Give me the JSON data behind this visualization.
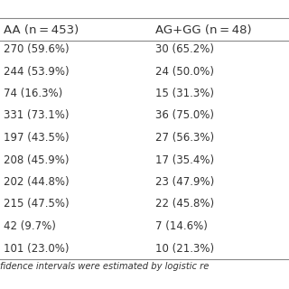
{
  "col1_header": "AA (n = 453)",
  "col2_header": "AG+GG (n = 48)",
  "col1_values": [
    "270 (59.6%)",
    "244 (53.9%)",
    "74 (16.3%)",
    "331 (73.1%)",
    "197 (43.5%)",
    "208 (45.9%)",
    "202 (44.8%)",
    "215 (47.5%)",
    "42 (9.7%)",
    "101 (23.0%)"
  ],
  "col2_values": [
    "30 (65.2%)",
    "24 (50.0%)",
    "15 (31.3%)",
    "36 (75.0%)",
    "27 (56.3%)",
    "17 (35.4%)",
    "23 (47.9%)",
    "22 (45.8%)",
    "7 (14.6%)",
    "10 (21.3%)"
  ],
  "footer": "fidence intervals were estimated by logistic re",
  "bg_color": "#ffffff",
  "text_color": "#333333",
  "line_color": "#888888",
  "font_size": 8.5,
  "header_font_size": 9.5
}
